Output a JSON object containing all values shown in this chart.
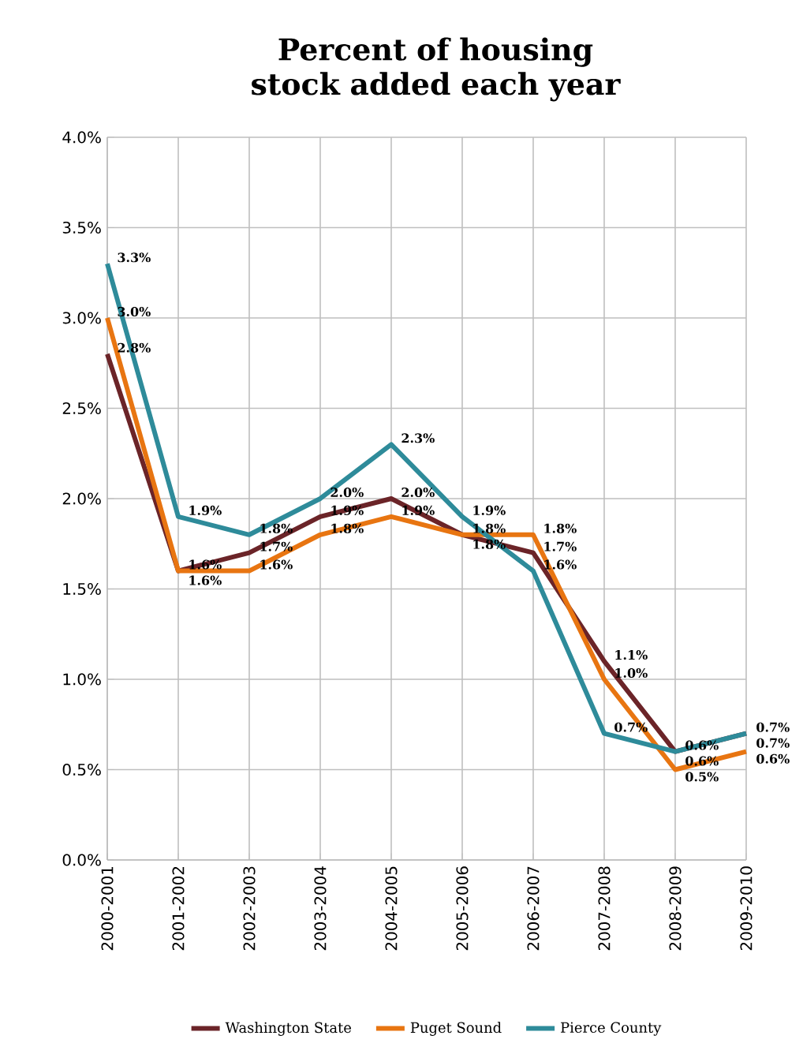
{
  "chart_data": {
    "type": "line",
    "title": "Percent of housing stock added each year",
    "categories": [
      "2000-2001",
      "2001-2002",
      "2002-2003",
      "2003-2004",
      "2004-2005",
      "2005-2006",
      "2006-2007",
      "2007-2008",
      "2008-2009",
      "2009-2010"
    ],
    "series": [
      {
        "name": "Washington State",
        "color": "#6b2428",
        "values": [
          2.8,
          1.6,
          1.7,
          1.9,
          2.0,
          1.8,
          1.7,
          1.1,
          0.6,
          0.7
        ],
        "value_labels": [
          "2.8%",
          "1.6%",
          "1.7%",
          "1.9%",
          "2.0%",
          "1.8%",
          "1.7%",
          "1.1%",
          "0.6%",
          "0.7%"
        ]
      },
      {
        "name": "Puget Sound",
        "color": "#e87511",
        "values": [
          3.0,
          1.6,
          1.6,
          1.8,
          1.9,
          1.8,
          1.8,
          1.0,
          0.5,
          0.6
        ],
        "value_labels": [
          "3.0%",
          "1.6%",
          "1.6%",
          "1.8%",
          "1.9%",
          "1.8%",
          "1.8%",
          "1.0%",
          "0.5%",
          "0.6%"
        ]
      },
      {
        "name": "Pierce County",
        "color": "#2e8b9a",
        "values": [
          3.3,
          1.9,
          1.8,
          2.0,
          2.3,
          1.9,
          1.6,
          0.7,
          0.6,
          0.7
        ],
        "value_labels": [
          "3.3%",
          "1.9%",
          "1.8%",
          "2.0%",
          "2.3%",
          "1.9%",
          "1.6%",
          "0.7%",
          "0.6%",
          "0.7%"
        ]
      }
    ],
    "ylim": [
      0,
      4
    ],
    "yticks": [
      {
        "value": 0,
        "label": "0.0%"
      },
      {
        "value": 0.5,
        "label": "0.5%"
      },
      {
        "value": 1,
        "label": "1.0%"
      },
      {
        "value": 1.5,
        "label": "1.5%"
      },
      {
        "value": 2,
        "label": "2.0%"
      },
      {
        "value": 2.5,
        "label": "2.5%"
      },
      {
        "value": 3,
        "label": "3.0%"
      },
      {
        "value": 3.5,
        "label": "3.5%"
      },
      {
        "value": 4,
        "label": "4.0%"
      }
    ],
    "grid": true,
    "legend": "bottom",
    "marker": "none",
    "line_style": "solid"
  }
}
